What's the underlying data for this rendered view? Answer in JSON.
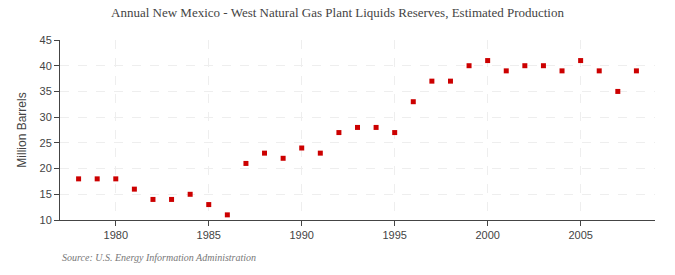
{
  "chart_data": {
    "type": "scatter",
    "title": "Annual New Mexico - West Natural Gas Plant Liquids Reserves, Estimated Production",
    "ylabel": "Million Barrels",
    "source": "Source: U.S. Energy Information Administration",
    "x": [
      1978,
      1979,
      1980,
      1981,
      1982,
      1983,
      1984,
      1985,
      1986,
      1987,
      1988,
      1989,
      1990,
      1991,
      1992,
      1993,
      1994,
      1995,
      1996,
      1997,
      1998,
      1999,
      2000,
      2001,
      2002,
      2003,
      2004,
      2005,
      2006,
      2007,
      2008
    ],
    "values": [
      18,
      18,
      18,
      16,
      14,
      14,
      15,
      13,
      11,
      21,
      23,
      22,
      24,
      23,
      27,
      28,
      28,
      27,
      33,
      37,
      37,
      40,
      41,
      39,
      40,
      40,
      39,
      41,
      39,
      35,
      39
    ],
    "color": "#cc0000",
    "marker": "square",
    "xlim": [
      1977,
      2009
    ],
    "xticks": [
      1980,
      1985,
      1990,
      1995,
      2000,
      2005
    ],
    "ylim": [
      10,
      45
    ],
    "yticks": [
      10,
      15,
      20,
      25,
      30,
      35,
      40,
      45
    ],
    "grid": true
  }
}
